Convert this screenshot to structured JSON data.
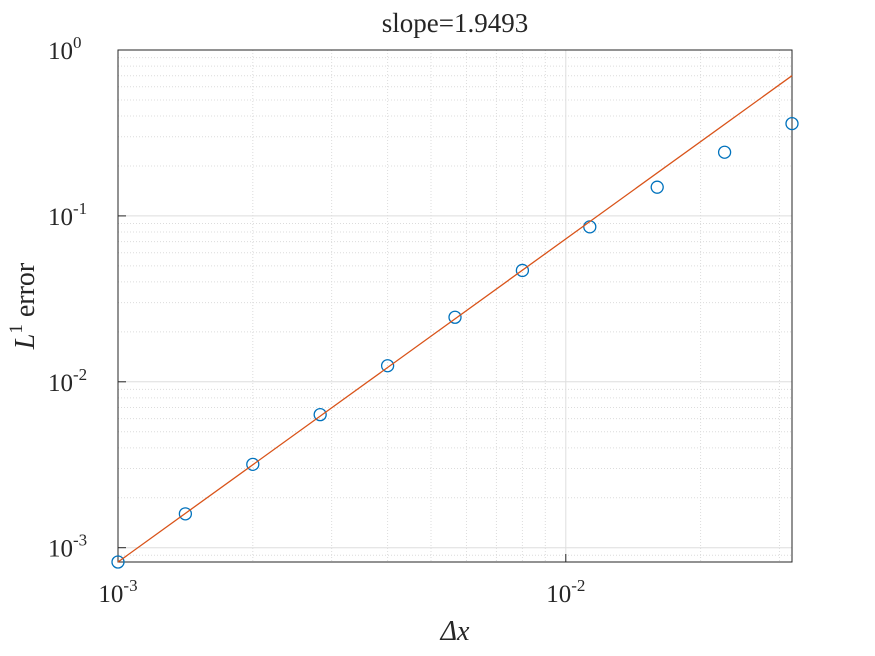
{
  "chart_data": {
    "type": "scatter",
    "title": "slope=1.9493",
    "xlabel": "Δx",
    "ylabel": {
      "base": "L",
      "sup": "1",
      "text": " error"
    },
    "log_x": true,
    "log_y": true,
    "grid": true,
    "minor_grid": true,
    "xlim": [
      0.001,
      0.032
    ],
    "ylim": [
      0.00082,
      1
    ],
    "xticks": [
      {
        "value": 0.001,
        "label": "10",
        "exponent": "-3"
      },
      {
        "value": 0.01,
        "label": "10",
        "exponent": "-2"
      }
    ],
    "yticks": [
      {
        "value": 0.001,
        "label": "10",
        "exponent": "-3"
      },
      {
        "value": 0.01,
        "label": "10",
        "exponent": "-2"
      },
      {
        "value": 0.1,
        "label": "10",
        "exponent": "-1"
      },
      {
        "value": 1,
        "label": "10",
        "exponent": "0"
      }
    ],
    "series": [
      {
        "color": "#0072bd",
        "marker": "circle",
        "x": [
          0.001,
          0.001414,
          0.002,
          0.002828,
          0.004,
          0.005657,
          0.008,
          0.011314,
          0.016,
          0.022627,
          0.032
        ],
        "values": [
          0.00082,
          0.0016,
          0.00318,
          0.00634,
          0.0125,
          0.0245,
          0.0469,
          0.0859,
          0.149,
          0.242,
          0.36
        ]
      },
      {
        "color": "#d95319",
        "marker": "line",
        "x": [
          0.001,
          0.032
        ],
        "values": [
          0.00082,
          0.7
        ]
      }
    ]
  }
}
